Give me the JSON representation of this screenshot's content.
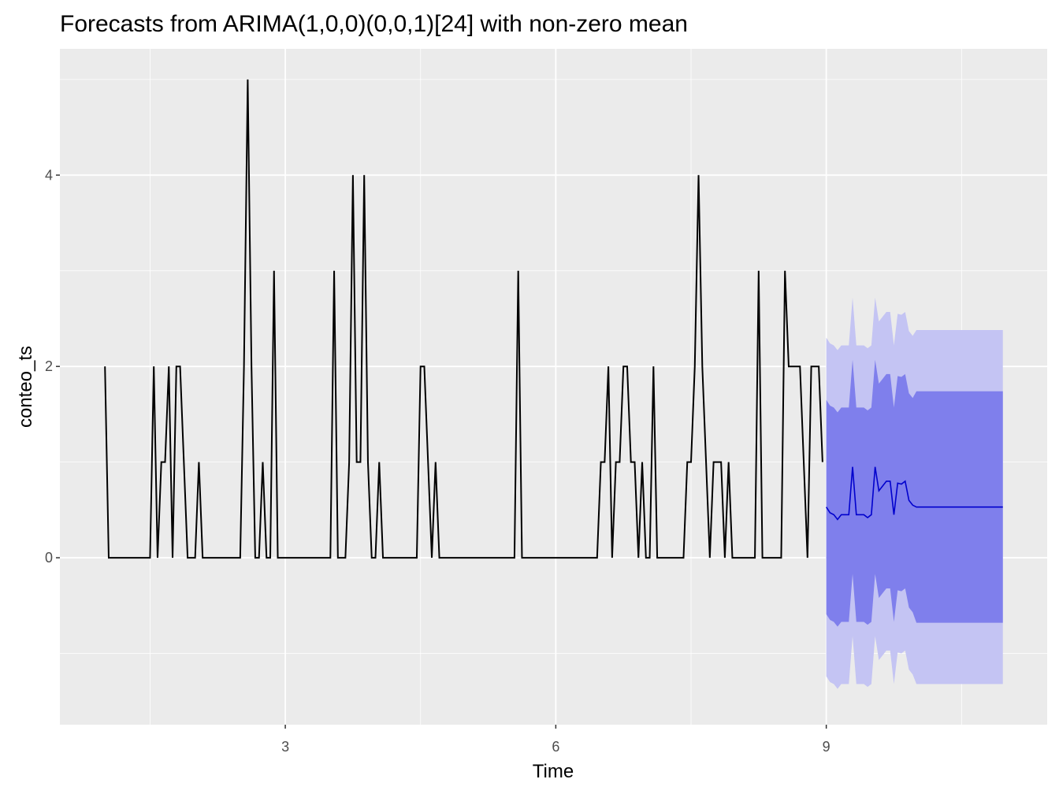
{
  "chart_data": {
    "type": "line",
    "title": "Forecasts from ARIMA(1,0,0)(0,0,1)[24] with non-zero mean",
    "x_label": "Time",
    "y_label": "conteo_ts",
    "xlim": [
      0.5,
      11.45
    ],
    "ylim": [
      -1.745,
      5.32
    ],
    "xticks": [
      3,
      6,
      9
    ],
    "yticks": [
      0,
      2,
      4
    ],
    "grid": true,
    "series": [
      {
        "color": "#000000",
        "start": 1,
        "frequency": 24,
        "values": [
          2,
          0,
          0,
          0,
          0,
          0,
          0,
          0,
          0,
          0,
          0,
          0,
          0,
          2,
          0,
          1,
          1,
          2,
          0,
          2,
          2,
          1,
          0,
          0,
          0,
          1,
          0,
          0,
          0,
          0,
          0,
          0,
          0,
          0,
          0,
          0,
          0,
          2,
          5,
          2,
          0,
          0,
          1,
          0,
          0,
          3,
          0,
          0,
          0,
          0,
          0,
          0,
          0,
          0,
          0,
          0,
          0,
          0,
          0,
          0,
          0,
          3,
          0,
          0,
          0,
          1,
          4,
          1,
          1,
          4,
          1,
          0,
          0,
          1,
          0,
          0,
          0,
          0,
          0,
          0,
          0,
          0,
          0,
          0,
          2,
          2,
          1,
          0,
          1,
          0,
          0,
          0,
          0,
          0,
          0,
          0,
          0,
          0,
          0,
          0,
          0,
          0,
          0,
          0,
          0,
          0,
          0,
          0,
          0,
          0,
          3,
          0,
          0,
          0,
          0,
          0,
          0,
          0,
          0,
          0,
          0,
          0,
          0,
          0,
          0,
          0,
          0,
          0,
          0,
          0,
          0,
          0,
          1,
          1,
          2,
          0,
          1,
          1,
          2,
          2,
          1,
          1,
          0,
          1,
          0,
          0,
          2,
          0,
          0,
          0,
          0,
          0,
          0,
          0,
          0,
          1,
          1,
          2,
          4,
          2,
          1,
          0,
          1,
          1,
          1,
          0,
          1,
          0,
          0,
          0,
          0,
          0,
          0,
          0,
          3,
          0,
          0,
          0,
          0,
          0,
          0,
          3,
          2,
          2,
          2,
          2,
          1,
          0,
          2,
          2,
          2,
          1
        ]
      }
    ],
    "forecast": {
      "start": 9,
      "frequency": 24,
      "color": "#0000cd",
      "color80": "#7f7fec",
      "color95": "#c4c4f3",
      "mean": [
        0.53,
        0.47,
        0.45,
        0.4,
        0.45,
        0.45,
        0.45,
        0.95,
        0.45,
        0.45,
        0.45,
        0.42,
        0.45,
        0.95,
        0.7,
        0.75,
        0.8,
        0.8,
        0.45,
        0.78,
        0.77,
        0.8,
        0.6,
        0.55,
        0.53,
        0.53,
        0.53,
        0.53,
        0.53,
        0.53,
        0.53,
        0.53,
        0.53,
        0.53,
        0.53,
        0.53,
        0.53,
        0.53,
        0.53,
        0.53,
        0.53,
        0.53,
        0.53,
        0.53,
        0.53,
        0.53,
        0.53,
        0.53
      ],
      "upper80": [
        1.65,
        1.59,
        1.57,
        1.52,
        1.57,
        1.57,
        1.57,
        2.07,
        1.57,
        1.57,
        1.57,
        1.54,
        1.57,
        2.07,
        1.82,
        1.87,
        1.92,
        1.92,
        1.57,
        1.9,
        1.89,
        1.92,
        1.72,
        1.67,
        1.74,
        1.74,
        1.74,
        1.74,
        1.74,
        1.74,
        1.74,
        1.74,
        1.74,
        1.74,
        1.74,
        1.74,
        1.74,
        1.74,
        1.74,
        1.74,
        1.74,
        1.74,
        1.74,
        1.74,
        1.74,
        1.74,
        1.74,
        1.74
      ],
      "lower80": [
        -0.59,
        -0.65,
        -0.67,
        -0.72,
        -0.67,
        -0.67,
        -0.67,
        -0.17,
        -0.67,
        -0.67,
        -0.67,
        -0.7,
        -0.67,
        -0.17,
        -0.42,
        -0.37,
        -0.32,
        -0.32,
        -0.67,
        -0.34,
        -0.35,
        -0.32,
        -0.52,
        -0.57,
        -0.68,
        -0.68,
        -0.68,
        -0.68,
        -0.68,
        -0.68,
        -0.68,
        -0.68,
        -0.68,
        -0.68,
        -0.68,
        -0.68,
        -0.68,
        -0.68,
        -0.68,
        -0.68,
        -0.68,
        -0.68,
        -0.68,
        -0.68,
        -0.68,
        -0.68,
        -0.68,
        -0.68
      ],
      "upper95": [
        2.3,
        2.24,
        2.22,
        2.17,
        2.22,
        2.22,
        2.22,
        2.72,
        2.22,
        2.22,
        2.22,
        2.19,
        2.22,
        2.72,
        2.47,
        2.52,
        2.57,
        2.57,
        2.22,
        2.55,
        2.54,
        2.57,
        2.37,
        2.32,
        2.38,
        2.38,
        2.38,
        2.38,
        2.38,
        2.38,
        2.38,
        2.38,
        2.38,
        2.38,
        2.38,
        2.38,
        2.38,
        2.38,
        2.38,
        2.38,
        2.38,
        2.38,
        2.38,
        2.38,
        2.38,
        2.38,
        2.38,
        2.38
      ],
      "lower95": [
        -1.24,
        -1.3,
        -1.32,
        -1.37,
        -1.32,
        -1.32,
        -1.32,
        -0.82,
        -1.32,
        -1.32,
        -1.32,
        -1.35,
        -1.32,
        -0.82,
        -1.07,
        -1.02,
        -0.97,
        -0.97,
        -1.32,
        -0.99,
        -1.0,
        -0.97,
        -1.17,
        -1.22,
        -1.32,
        -1.32,
        -1.32,
        -1.32,
        -1.32,
        -1.32,
        -1.32,
        -1.32,
        -1.32,
        -1.32,
        -1.32,
        -1.32,
        -1.32,
        -1.32,
        -1.32,
        -1.32,
        -1.32,
        -1.32,
        -1.32,
        -1.32,
        -1.32,
        -1.32,
        -1.32,
        -1.32
      ]
    }
  }
}
